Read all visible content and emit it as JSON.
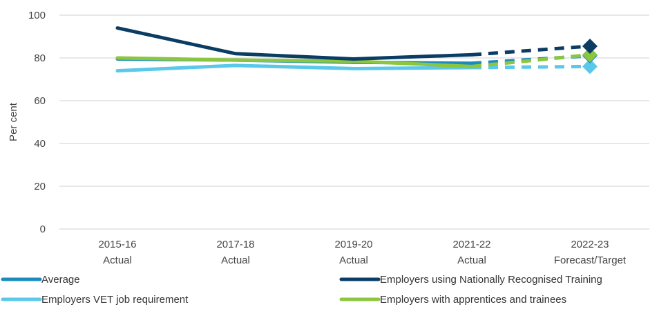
{
  "chart_data": {
    "type": "line",
    "title": "",
    "xlabel": "",
    "ylabel": "Per cent",
    "ylim": [
      0,
      100
    ],
    "yticks": [
      0,
      20,
      40,
      60,
      80,
      100
    ],
    "grid": "horizontal",
    "legend_placement": "bottom",
    "categories": [
      {
        "line1": "2015-16",
        "line2": "Actual"
      },
      {
        "line1": "2017-18",
        "line2": "Actual"
      },
      {
        "line1": "2019-20",
        "line2": "Actual"
      },
      {
        "line1": "2021-22",
        "line2": "Actual"
      },
      {
        "line1": "2022-23",
        "line2": "Forecast/Target"
      }
    ],
    "forecast_from_index": 3,
    "series": [
      {
        "name": "Average",
        "color": "#1a8bbf",
        "values": [
          79.5,
          79,
          78,
          77.5,
          81
        ]
      },
      {
        "name": "Employers using Nationally Recognised Training",
        "color": "#0b3c64",
        "values": [
          94,
          82,
          79.5,
          81.5,
          85.5
        ]
      },
      {
        "name": "Employers VET job requirement",
        "color": "#5ac8ea",
        "values": [
          74,
          76.5,
          75,
          75.5,
          76
        ]
      },
      {
        "name": "Employers with apprentices and trainees",
        "color": "#8cc63f",
        "values": [
          80,
          79,
          78.5,
          76,
          81.5
        ]
      }
    ]
  }
}
